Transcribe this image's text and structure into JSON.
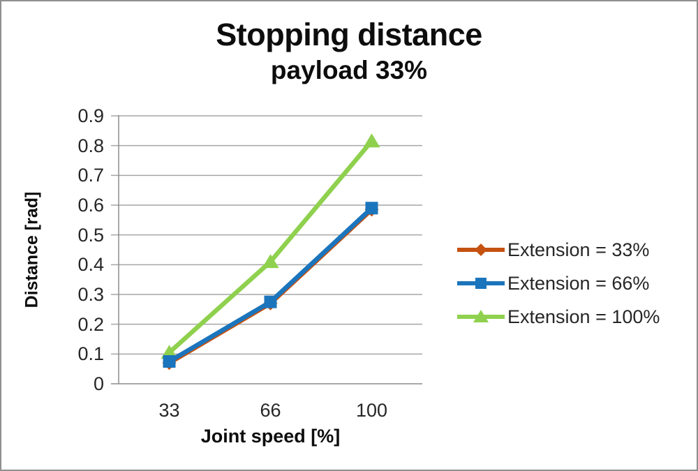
{
  "chart_data": {
    "type": "line",
    "title": "Stopping distance",
    "subtitle": "payload 33%",
    "xlabel": "Joint speed [%]",
    "ylabel": "Distance [rad]",
    "categories": [
      "33",
      "66",
      "100"
    ],
    "ylim": [
      0,
      0.9
    ],
    "ytick_step": 0.1,
    "y_tick_labels": [
      "0",
      "0.1",
      "0.2",
      "0.3",
      "0.4",
      "0.5",
      "0.6",
      "0.7",
      "0.8",
      "0.9"
    ],
    "grid": true,
    "legend_position": "right",
    "series": [
      {
        "name": "Extension = 33%",
        "marker": "diamond",
        "color": "#C55211",
        "values": [
          0.07,
          0.27,
          0.585
        ]
      },
      {
        "name": "Extension = 66%",
        "marker": "square",
        "color": "#1B75BC",
        "values": [
          0.075,
          0.275,
          0.59
        ]
      },
      {
        "name": "Extension = 100%",
        "marker": "triangle",
        "color": "#8FD14E",
        "values": [
          0.105,
          0.41,
          0.815
        ]
      }
    ]
  },
  "colors": {
    "gridline": "#A6A6A6",
    "axis_line": "#8C8C8C",
    "text": "#262626",
    "title_text": "#0D0D0D",
    "background": "#FFFFFF",
    "frame_border": "#8F8F8F"
  }
}
